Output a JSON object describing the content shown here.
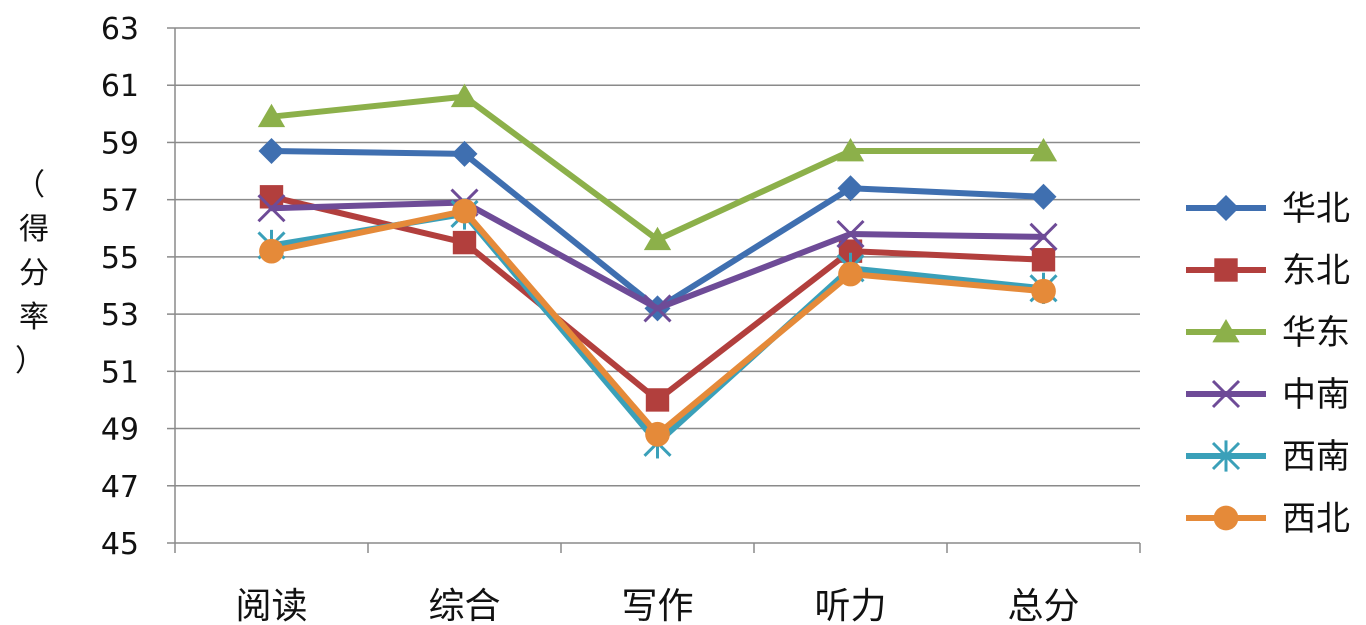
{
  "chart_data": {
    "type": "line",
    "title": "",
    "xlabel": "",
    "ylabel": "（得分率）",
    "categories": [
      "阅读",
      "综合",
      "写作",
      "听力",
      "总分"
    ],
    "ylim": [
      45,
      63
    ],
    "yticks": [
      45,
      47,
      49,
      51,
      53,
      55,
      57,
      59,
      61,
      63
    ],
    "grid": true,
    "legend_position": "right",
    "series": [
      {
        "name": "华北",
        "color": "#3f6fb0",
        "marker": "diamond",
        "values": [
          58.7,
          58.6,
          53.2,
          57.4,
          57.1
        ]
      },
      {
        "name": "东北",
        "color": "#b23f3d",
        "marker": "square",
        "values": [
          57.1,
          55.5,
          50.0,
          55.2,
          54.9
        ]
      },
      {
        "name": "华东",
        "color": "#8cb04a",
        "marker": "triangle",
        "values": [
          59.9,
          60.6,
          55.6,
          58.7,
          58.7
        ]
      },
      {
        "name": "中南",
        "color": "#6e4b97",
        "marker": "x",
        "values": [
          56.7,
          56.9,
          53.2,
          55.8,
          55.7
        ]
      },
      {
        "name": "西南",
        "color": "#3aa0b9",
        "marker": "asterisk",
        "values": [
          55.4,
          56.5,
          48.5,
          54.6,
          53.9
        ]
      },
      {
        "name": "西北",
        "color": "#e58a39",
        "marker": "circle",
        "values": [
          55.2,
          56.6,
          48.8,
          54.4,
          53.8
        ]
      }
    ]
  }
}
